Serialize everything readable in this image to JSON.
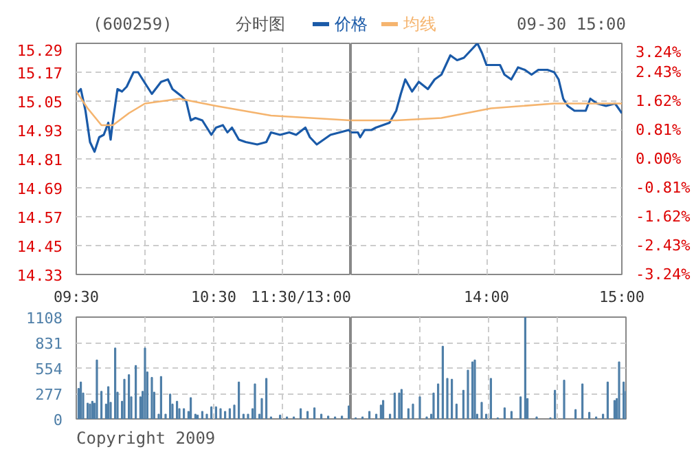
{
  "chart_data": [
    {
      "type": "line",
      "title": "(600259)",
      "subtitle": "分时图",
      "annotations": [
        "09-30 15:00"
      ],
      "legend": "top",
      "grid": true,
      "line_style": "solid",
      "tick_labels": "xy",
      "xlim": [
        9.5,
        11.5
      ],
      "xticks": [
        {
          "value": 9.5,
          "label": "09:30"
        },
        {
          "value": 10,
          "label": null
        },
        {
          "value": 10.5,
          "label": "10:30"
        },
        {
          "value": 11,
          "label": null
        },
        {
          "value": 11.5,
          "label": "11:30/13:00"
        }
      ],
      "ylim": [
        14.33,
        15.29
      ],
      "yticks": [
        14.33,
        14.45,
        14.57,
        14.69,
        14.81,
        14.93,
        15.05,
        15.17,
        15.29
      ],
      "series": [
        {
          "name": "价格",
          "color": "#1a5aa8",
          "x": [
            9.5,
            9.533,
            9.567,
            9.6,
            9.633,
            9.667,
            9.7,
            9.733,
            9.75,
            9.767,
            9.8,
            9.833,
            9.867,
            9.917,
            9.95,
            9.983,
            10.05,
            10.117,
            10.167,
            10.2,
            10.267,
            10.3,
            10.333,
            10.367,
            10.417,
            10.45,
            10.483,
            10.517,
            10.567,
            10.6,
            10.633,
            10.683,
            10.733,
            10.817,
            10.883,
            10.917,
            10.983,
            11.05,
            11.1,
            11.167,
            11.2,
            11.25,
            11.3,
            11.35,
            11.417,
            11.483,
            11.5
          ],
          "values": [
            15.08,
            15.1,
            15.01,
            14.88,
            14.84,
            14.9,
            14.91,
            14.96,
            14.89,
            14.97,
            15.1,
            15.09,
            15.11,
            15.17,
            15.17,
            15.14,
            15.08,
            15.13,
            15.14,
            15.1,
            15.07,
            15.05,
            14.97,
            14.98,
            14.97,
            14.94,
            14.91,
            14.94,
            14.95,
            14.92,
            14.94,
            14.89,
            14.88,
            14.87,
            14.88,
            14.92,
            14.91,
            14.92,
            14.91,
            14.94,
            14.9,
            14.87,
            14.89,
            14.91,
            14.92,
            14.93,
            14.92
          ]
        },
        {
          "name": "均线",
          "color": "#f5b46e",
          "x": [
            9.5,
            9.583,
            9.683,
            9.767,
            9.883,
            10,
            10.25,
            10.517,
            10.917,
            11.5
          ],
          "values": [
            15.09,
            15.02,
            14.95,
            14.95,
            15.0,
            15.04,
            15.06,
            15.03,
            14.99,
            14.97
          ]
        }
      ]
    },
    {
      "type": "line",
      "grid": true,
      "line_style": "solid",
      "tick_labels": "x",
      "xlim": [
        13,
        15
      ],
      "xticks": [
        {
          "value": 13,
          "label": null
        },
        {
          "value": 13.5,
          "label": null
        },
        {
          "value": 14,
          "label": "14:00"
        },
        {
          "value": 14.5,
          "label": null
        },
        {
          "value": 15,
          "label": "15:00"
        }
      ],
      "ylim": [
        14.33,
        15.29
      ],
      "yticks": [
        14.33,
        14.45,
        14.57,
        14.69,
        14.81,
        14.93,
        15.05,
        15.17,
        15.29
      ],
      "y2lim": [
        -3.24,
        3.24
      ],
      "y2ticks": [
        {
          "value": -3.24,
          "label": "-3.24%"
        },
        {
          "value": -2.43,
          "label": "-2.43%"
        },
        {
          "value": -1.62,
          "label": "-1.62%"
        },
        {
          "value": -0.81,
          "label": "-0.81%"
        },
        {
          "value": 0,
          "label": "0.00%"
        },
        {
          "value": 0.81,
          "label": "0.81%"
        },
        {
          "value": 1.62,
          "label": "1.62%"
        },
        {
          "value": 2.43,
          "label": "2.43%"
        },
        {
          "value": 3.24,
          "label": "3.24%"
        }
      ],
      "series": [
        {
          "color": "#1a5aa8",
          "x": [
            13,
            13.05,
            13.067,
            13.1,
            13.15,
            13.183,
            13.233,
            13.283,
            13.333,
            13.367,
            13.4,
            13.45,
            13.5,
            13.567,
            13.617,
            13.667,
            13.7,
            13.733,
            13.783,
            13.833,
            13.883,
            13.933,
            13.967,
            14,
            14.1,
            14.133,
            14.183,
            14.233,
            14.283,
            14.333,
            14.383,
            14.45,
            14.5,
            14.533,
            14.567,
            14.6,
            14.65,
            14.733,
            14.767,
            14.817,
            14.883,
            14.95,
            15
          ],
          "values": [
            14.92,
            14.92,
            14.9,
            14.93,
            14.93,
            14.94,
            14.95,
            14.96,
            15.01,
            15.08,
            15.14,
            15.09,
            15.13,
            15.1,
            15.14,
            15.16,
            15.2,
            15.24,
            15.22,
            15.23,
            15.26,
            15.29,
            15.25,
            15.2,
            15.2,
            15.16,
            15.14,
            15.19,
            15.18,
            15.16,
            15.18,
            15.18,
            15.17,
            15.14,
            15.06,
            15.03,
            15.01,
            15.01,
            15.06,
            15.04,
            15.03,
            15.04,
            15.0
          ]
        },
        {
          "color": "#f5b46e",
          "x": [
            13,
            13.333,
            13.667,
            14.033,
            14.5,
            15
          ],
          "values": [
            14.97,
            14.97,
            14.98,
            15.02,
            15.04,
            15.04
          ]
        }
      ]
    },
    {
      "type": "bar",
      "annotations": [
        "Copyright 2009"
      ],
      "grid": true,
      "tick_labels": "y",
      "color": "#4f7fa8",
      "xlim": [
        9.5,
        11.5
      ],
      "xticks": [
        {
          "value": 9.5,
          "label": null
        },
        {
          "value": 10,
          "label": null
        },
        {
          "value": 10.5,
          "label": null
        },
        {
          "value": 11,
          "label": null
        },
        {
          "value": 11.5,
          "label": null
        }
      ],
      "ylim": [
        0,
        1108
      ],
      "yticks": [
        0,
        277,
        554,
        831,
        1108
      ],
      "x": [
        9.517,
        9.533,
        9.55,
        9.583,
        9.6,
        9.617,
        9.633,
        9.65,
        9.683,
        9.717,
        9.733,
        9.75,
        9.783,
        9.8,
        9.833,
        9.85,
        9.883,
        9.9,
        9.933,
        9.967,
        9.983,
        10,
        10.017,
        10.05,
        10.067,
        10.1,
        10.117,
        10.15,
        10.183,
        10.2,
        10.233,
        10.25,
        10.283,
        10.317,
        10.333,
        10.367,
        10.383,
        10.417,
        10.45,
        10.483,
        10.517,
        10.55,
        10.583,
        10.617,
        10.65,
        10.683,
        10.717,
        10.75,
        10.783,
        10.8,
        10.833,
        10.85,
        10.883,
        10.917,
        10.983,
        11.033,
        11.083,
        11.133,
        11.183,
        11.233,
        11.283,
        11.333,
        11.383,
        11.433,
        11.483
      ],
      "values": [
        330,
        400,
        280,
        170,
        160,
        190,
        170,
        640,
        300,
        160,
        350,
        180,
        770,
        290,
        190,
        430,
        480,
        240,
        580,
        240,
        300,
        770,
        510,
        450,
        290,
        50,
        460,
        50,
        270,
        160,
        190,
        110,
        110,
        80,
        230,
        50,
        40,
        80,
        50,
        130,
        130,
        110,
        80,
        110,
        150,
        400,
        50,
        50,
        110,
        380,
        50,
        220,
        440,
        20,
        40,
        20,
        20,
        110,
        80,
        120,
        50,
        30,
        20,
        30,
        140
      ]
    },
    {
      "type": "bar",
      "grid": true,
      "tick_labels": false,
      "color": "#4f7fa8",
      "xlim": [
        13,
        15
      ],
      "xticks": [
        {
          "value": 13,
          "label": null
        },
        {
          "value": 13.5,
          "label": null
        },
        {
          "value": 14,
          "label": null
        },
        {
          "value": 14.5,
          "label": null
        },
        {
          "value": 15,
          "label": null
        }
      ],
      "ylim": [
        0,
        1108
      ],
      "yticks": [
        0,
        277,
        554,
        831,
        1108
      ],
      "x": [
        13.033,
        13.083,
        13.133,
        13.183,
        13.217,
        13.233,
        13.283,
        13.317,
        13.35,
        13.367,
        13.417,
        13.45,
        13.5,
        13.55,
        13.583,
        13.6,
        13.633,
        13.667,
        13.7,
        13.733,
        13.767,
        13.817,
        13.85,
        13.883,
        13.9,
        13.917,
        13.95,
        13.983,
        14.017,
        14.067,
        14.117,
        14.167,
        14.233,
        14.267,
        14.283,
        14.35,
        14.45,
        14.483,
        14.55,
        14.633,
        14.683,
        14.733,
        14.783,
        14.833,
        14.867,
        14.917,
        14.933,
        14.95,
        14.983,
        15
      ],
      "values": [
        10,
        20,
        80,
        50,
        150,
        200,
        50,
        280,
        280,
        320,
        110,
        160,
        240,
        20,
        50,
        280,
        380,
        790,
        440,
        430,
        160,
        310,
        530,
        620,
        640,
        50,
        180,
        50,
        440,
        10,
        120,
        80,
        240,
        1108,
        220,
        20,
        10,
        310,
        420,
        100,
        380,
        70,
        20,
        50,
        400,
        200,
        220,
        620,
        400,
        300
      ]
    }
  ]
}
